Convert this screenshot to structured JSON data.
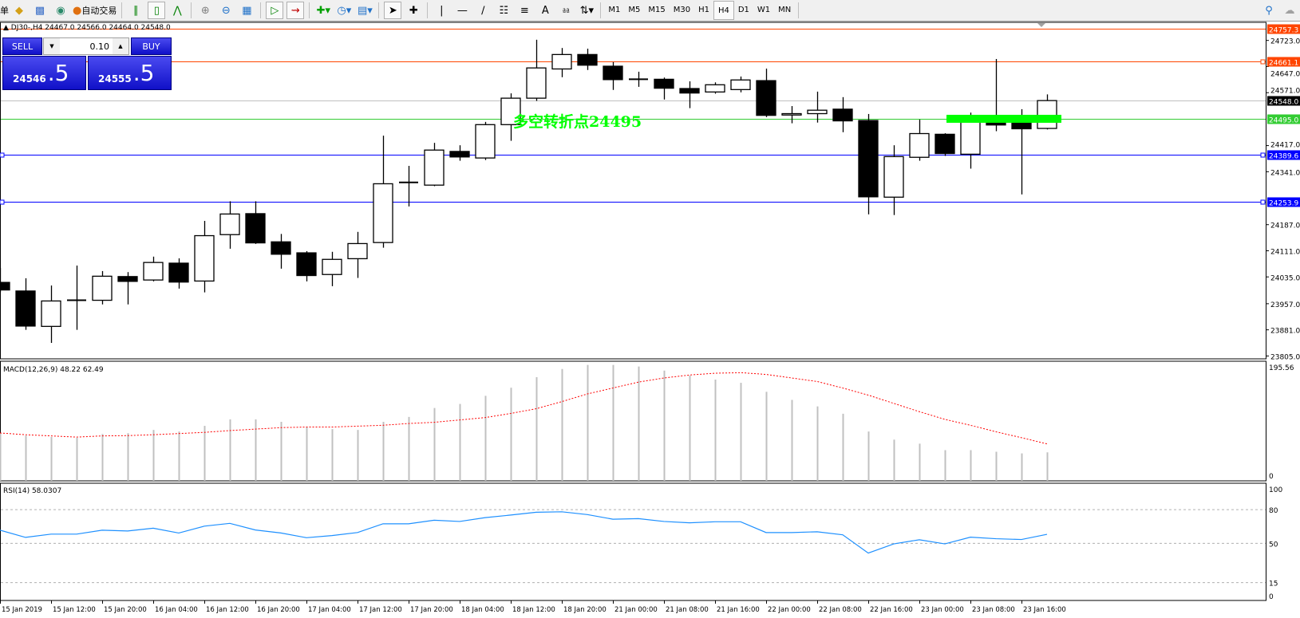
{
  "toolbar": {
    "left_fragment": "单",
    "autotrade_label": "自动交易",
    "timeframes": [
      "M1",
      "M5",
      "M15",
      "M30",
      "H1",
      "H4",
      "D1",
      "W1",
      "MN"
    ],
    "active_timeframe": "H4",
    "icons": [
      "folder-icon",
      "profile-icon",
      "signal-icon",
      "autotrade-icon",
      "bar-chart-icon",
      "candlestick-icon",
      "line-chart-icon",
      "zoom-in-icon",
      "zoom-out-icon",
      "tile-windows-icon",
      "autoscroll-icon",
      "chart-shift-icon",
      "indicators-icon",
      "periods-icon",
      "templates-icon",
      "cursor-icon",
      "crosshair-icon",
      "vertical-line-icon",
      "horizontal-line-icon",
      "trendline-icon",
      "equidistant-channel-icon",
      "fibonacci-icon",
      "text-icon",
      "text-label-icon",
      "arrows-icon",
      "search-icon",
      "chat-icon"
    ]
  },
  "chart": {
    "header": "DJ30-,H4  24467.0 24566.0 24464.0 24548.0",
    "one_click": {
      "sell_label": "SELL",
      "buy_label": "BUY",
      "lot": "0.10",
      "sell_price_main": "24546",
      "sell_price_frac": ".5",
      "buy_price_main": "24555",
      "buy_price_frac": ".5"
    },
    "annotation": "多空转折点24495",
    "colors": {
      "bull": "#ffffff",
      "bear": "#000000",
      "orange": "#ff4500",
      "blue": "#0000ff",
      "green": "#33cc33",
      "bid": "#c0c0c0",
      "trend": "#00ff00",
      "macd_hist": "#c0c0c0",
      "macd_signal": "#ff0000",
      "rsi": "#1e90ff"
    },
    "price_ticks": [
      "24723.0",
      "24647.0",
      "24571.0",
      "24417.0",
      "24341.0",
      "24187.0",
      "24111.0",
      "24035.0",
      "23957.0",
      "23881.0",
      "23805.0"
    ],
    "levels": [
      {
        "price": 24757.3,
        "label": "24757.3",
        "color": "#ff4500"
      },
      {
        "price": 24661.1,
        "label": "24661.1",
        "color": "#ff4500"
      },
      {
        "price": 24548.0,
        "label": "24548.0",
        "color": "#c0c0c0",
        "label_bg": "#000000"
      },
      {
        "price": 24495.0,
        "label": "24495.0",
        "color": "#33cc33"
      },
      {
        "price": 24389.6,
        "label": "24389.6",
        "color": "#0000ff"
      },
      {
        "price": 24253.9,
        "label": "24253.9",
        "color": "#0000ff"
      }
    ],
    "trend_segment": {
      "price": 24495,
      "from_bar": 37,
      "to_bar": 41
    }
  },
  "chart_data": [
    {
      "type": "candlestick",
      "symbol": "DJ30-",
      "timeframe": "H4",
      "ohlc": [
        [
          24019,
          24061,
          23990,
          23997
        ],
        [
          23994,
          24031,
          23881,
          23892
        ],
        [
          23891,
          24010,
          23843,
          23965
        ],
        [
          23967,
          24068,
          23881,
          23967
        ],
        [
          23967,
          24052,
          23955,
          24037
        ],
        [
          24036,
          24049,
          23955,
          24022
        ],
        [
          24026,
          24094,
          24022,
          24077
        ],
        [
          24075,
          24089,
          24001,
          24020
        ],
        [
          24023,
          24198,
          23990,
          24155
        ],
        [
          24158,
          24255,
          24117,
          24218
        ],
        [
          24219,
          24255,
          24131,
          24134
        ],
        [
          24137,
          24160,
          24059,
          24101
        ],
        [
          24105,
          24110,
          24022,
          24039
        ],
        [
          24042,
          24108,
          24008,
          24086
        ],
        [
          24088,
          24166,
          24032,
          24132
        ],
        [
          24135,
          24446,
          24120,
          24306
        ],
        [
          24310,
          24358,
          24240,
          24310
        ],
        [
          24302,
          24425,
          24299,
          24404
        ],
        [
          24400,
          24418,
          24373,
          24384
        ],
        [
          24381,
          24486,
          24375,
          24478
        ],
        [
          24478,
          24569,
          24431,
          24555
        ],
        [
          24555,
          24725,
          24547,
          24643
        ],
        [
          24640,
          24701,
          24616,
          24682
        ],
        [
          24682,
          24699,
          24637,
          24651
        ],
        [
          24648,
          24660,
          24579,
          24609
        ],
        [
          24610,
          24632,
          24588,
          24610
        ],
        [
          24610,
          24615,
          24551,
          24584
        ],
        [
          24583,
          24604,
          24526,
          24570
        ],
        [
          24573,
          24601,
          24568,
          24594
        ],
        [
          24580,
          24618,
          24572,
          24608
        ],
        [
          24606,
          24641,
          24500,
          24505
        ],
        [
          24506,
          24532,
          24482,
          24510
        ],
        [
          24510,
          24574,
          24484,
          24520
        ],
        [
          24523,
          24558,
          24456,
          24489
        ],
        [
          24490,
          24509,
          24217,
          24268
        ],
        [
          24267,
          24418,
          24215,
          24385
        ],
        [
          24383,
          24493,
          24373,
          24452
        ],
        [
          24450,
          24453,
          24387,
          24394
        ],
        [
          24392,
          24513,
          24350,
          24497
        ],
        [
          24493,
          24669,
          24459,
          24477
        ],
        [
          24497,
          24523,
          24275,
          24466
        ],
        [
          24467,
          24566,
          24464,
          24548
        ]
      ],
      "x_tick_labels": [
        "15 Jan 2019",
        "15 Jan 12:00",
        "15 Jan 20:00",
        "16 Jan 04:00",
        "16 Jan 12:00",
        "16 Jan 20:00",
        "17 Jan 04:00",
        "17 Jan 12:00",
        "17 Jan 20:00",
        "18 Jan 04:00",
        "18 Jan 12:00",
        "18 Jan 20:00",
        "21 Jan 00:00",
        "21 Jan 08:00",
        "21 Jan 16:00",
        "22 Jan 00:00",
        "22 Jan 08:00",
        "22 Jan 16:00",
        "23 Jan 00:00",
        "23 Jan 08:00",
        "23 Jan 16:00"
      ],
      "ylim": [
        23796,
        24775
      ]
    },
    {
      "type": "bar",
      "title": "MACD(12,26,9) 48.22 62.49",
      "ylim": [
        0,
        195.56
      ],
      "y_tick_labels": [
        "195.56",
        "0"
      ],
      "histogram": [
        80.6,
        76.5,
        74.2,
        72.8,
        79.2,
        80.6,
        86.1,
        83.4,
        93.0,
        104.0,
        104.0,
        99.8,
        91.6,
        87.5,
        86.1,
        99.8,
        108.1,
        123.2,
        130.1,
        143.8,
        157.5,
        175.4,
        189.1,
        196.0,
        196.0,
        193.3,
        186.4,
        178.1,
        171.3,
        165.8,
        150.6,
        136.9,
        125.9,
        113.5,
        83.4,
        69.7,
        62.9,
        51.9,
        51.9,
        49.2,
        46.4,
        48.22
      ],
      "signal": [
        81,
        78,
        76,
        74,
        76,
        76.5,
        78,
        80,
        82,
        85,
        87.5,
        90,
        91,
        91,
        92.5,
        94,
        97,
        99,
        103,
        107,
        114,
        122,
        134,
        147,
        157,
        167,
        174,
        179,
        182,
        183,
        180,
        174,
        168,
        157,
        145,
        131,
        117,
        104,
        94,
        83,
        73,
        62.49
      ]
    },
    {
      "type": "line",
      "title": "RSI(14) 58.0307",
      "ylim": [
        0,
        100
      ],
      "y_tick_labels": [
        "100",
        "80",
        "50",
        "15",
        "0"
      ],
      "levels": [
        80,
        50,
        15
      ],
      "values": [
        61.7,
        55.3,
        58.2,
        58.2,
        61.7,
        61.0,
        63.5,
        59.2,
        65.3,
        67.8,
        61.9,
        59.2,
        55.0,
        56.9,
        59.6,
        67.4,
        67.4,
        70.6,
        69.5,
        72.9,
        75.2,
        77.7,
        78.1,
        75.6,
        71.5,
        72.0,
        69.5,
        68.3,
        69.2,
        69.2,
        59.6,
        59.6,
        60.3,
        57.6,
        41.3,
        49.5,
        53.2,
        49.5,
        55.5,
        54.1,
        53.4,
        58.03
      ]
    }
  ]
}
